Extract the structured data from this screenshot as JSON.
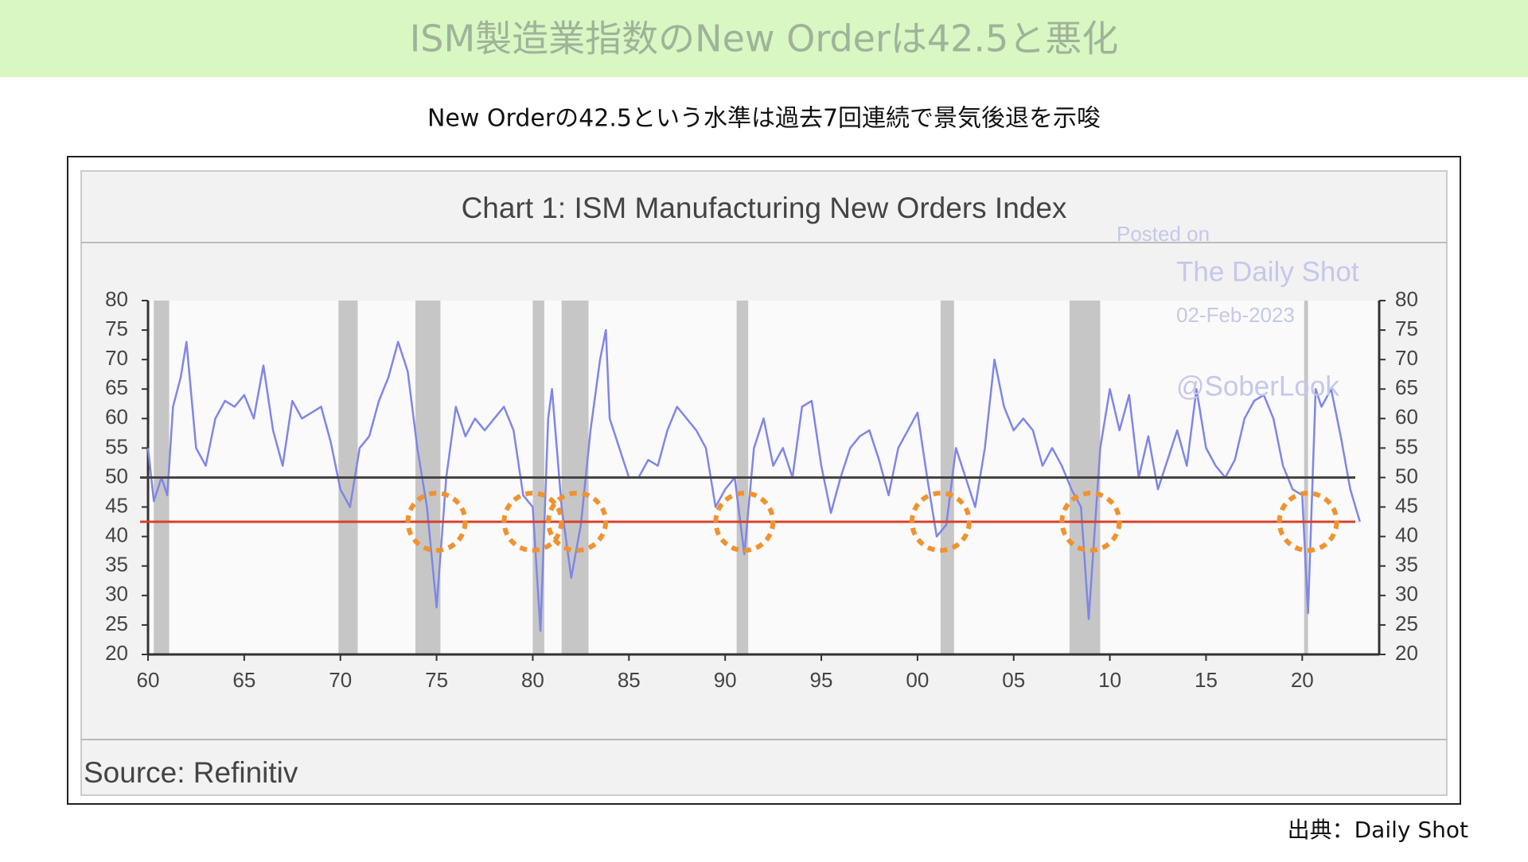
{
  "header": {
    "title": "ISM製造業指数のNew Orderは42.5と悪化",
    "subtitle": "New Orderの42.5という水準は過去7回連続で景気後退を示唆"
  },
  "footer": {
    "credit": "出典：Daily Shot"
  },
  "chart_data": {
    "type": "line",
    "title": "Chart 1: ISM Manufacturing New Orders Index",
    "source": "Source: Refinitiv",
    "watermark": [
      "Posted on",
      "The Daily Shot",
      "02-Feb-2023",
      "@SoberLook"
    ],
    "x": [
      1960.0,
      1960.3,
      1960.7,
      1961.0,
      1961.3,
      1961.7,
      1962.0,
      1962.5,
      1963.0,
      1963.5,
      1964.0,
      1964.5,
      1965.0,
      1965.5,
      1966.0,
      1966.5,
      1967.0,
      1967.5,
      1968.0,
      1968.5,
      1969.0,
      1969.5,
      1970.0,
      1970.5,
      1971.0,
      1971.5,
      1972.0,
      1972.5,
      1973.0,
      1973.5,
      1974.0,
      1974.5,
      1975.0,
      1975.5,
      1976.0,
      1976.5,
      1977.0,
      1977.5,
      1978.0,
      1978.5,
      1979.0,
      1979.5,
      1980.0,
      1980.4,
      1980.8,
      1981.0,
      1981.5,
      1982.0,
      1982.5,
      1983.0,
      1983.5,
      1983.8,
      1984.0,
      1984.5,
      1985.0,
      1985.5,
      1986.0,
      1986.5,
      1987.0,
      1987.5,
      1988.0,
      1988.5,
      1989.0,
      1989.5,
      1990.0,
      1990.5,
      1991.0,
      1991.5,
      1992.0,
      1992.5,
      1993.0,
      1993.5,
      1994.0,
      1994.5,
      1995.0,
      1995.5,
      1996.0,
      1996.5,
      1997.0,
      1997.5,
      1998.0,
      1998.5,
      1999.0,
      1999.5,
      2000.0,
      2000.5,
      2001.0,
      2001.5,
      2002.0,
      2002.5,
      2003.0,
      2003.5,
      2004.0,
      2004.5,
      2005.0,
      2005.5,
      2006.0,
      2006.5,
      2007.0,
      2007.5,
      2008.0,
      2008.5,
      2008.9,
      2009.5,
      2010.0,
      2010.5,
      2011.0,
      2011.5,
      2012.0,
      2012.5,
      2013.0,
      2013.5,
      2014.0,
      2014.5,
      2015.0,
      2015.5,
      2016.0,
      2016.5,
      2017.0,
      2017.5,
      2018.0,
      2018.5,
      2019.0,
      2019.5,
      2020.0,
      2020.3,
      2020.7,
      2021.0,
      2021.5,
      2022.0,
      2022.5,
      2023.0
    ],
    "series": [
      {
        "color": "#7f86e6",
        "values": [
          55,
          46,
          50,
          47,
          62,
          67,
          73,
          55,
          52,
          60,
          63,
          62,
          64,
          60,
          69,
          58,
          52,
          63,
          60,
          61,
          62,
          56,
          48,
          45,
          55,
          57,
          63,
          67,
          73,
          68,
          55,
          45,
          28,
          50,
          62,
          57,
          60,
          58,
          60,
          62,
          58,
          47,
          45,
          24,
          60,
          65,
          45,
          33,
          42,
          58,
          70,
          75,
          60,
          55,
          50,
          50,
          53,
          52,
          58,
          62,
          60,
          58,
          55,
          45,
          48,
          50,
          37,
          55,
          60,
          52,
          55,
          50,
          62,
          63,
          52,
          44,
          50,
          55,
          57,
          58,
          53,
          47,
          55,
          58,
          61,
          50,
          40,
          42,
          55,
          50,
          45,
          55,
          70,
          62,
          58,
          60,
          58,
          52,
          55,
          52,
          48,
          45,
          26,
          55,
          65,
          58,
          64,
          50,
          57,
          48,
          53,
          58,
          52,
          65,
          55,
          52,
          50,
          53,
          60,
          63,
          64,
          60,
          52,
          48,
          47,
          27,
          65,
          62,
          65,
          57,
          48,
          42.5
        ]
      }
    ],
    "xlim": [
      1960,
      2024
    ],
    "ylim": [
      20,
      80
    ],
    "y2lim": [
      20,
      80
    ],
    "xticks": [
      {
        "value": 1960,
        "label": "60"
      },
      {
        "value": 1965,
        "label": "65"
      },
      {
        "value": 1970,
        "label": "70"
      },
      {
        "value": 1975,
        "label": "75"
      },
      {
        "value": 1980,
        "label": "80"
      },
      {
        "value": 1985,
        "label": "85"
      },
      {
        "value": 1990,
        "label": "90"
      },
      {
        "value": 1995,
        "label": "95"
      },
      {
        "value": 2000,
        "label": "00"
      },
      {
        "value": 2005,
        "label": "05"
      },
      {
        "value": 2010,
        "label": "10"
      },
      {
        "value": 2015,
        "label": "15"
      },
      {
        "value": 2020,
        "label": "20"
      }
    ],
    "yticks": [
      20,
      25,
      30,
      35,
      40,
      45,
      50,
      55,
      60,
      65,
      70,
      75,
      80
    ],
    "y2ticks": [
      20,
      25,
      30,
      35,
      40,
      45,
      50,
      55,
      60,
      65,
      70,
      75,
      80
    ],
    "recessions": [
      [
        1960.3,
        1961.1
      ],
      [
        1969.9,
        1970.9
      ],
      [
        1973.9,
        1975.2
      ],
      [
        1980.0,
        1980.6
      ],
      [
        1981.5,
        1982.9
      ],
      [
        1990.6,
        1991.2
      ],
      [
        2001.2,
        2001.9
      ],
      [
        2007.9,
        2009.5
      ],
      [
        2020.1,
        2020.3
      ]
    ],
    "recession_color": "#c6c6c6",
    "reference_lines": [
      {
        "value": 50,
        "color": "#444444"
      },
      {
        "value": 42.5,
        "color": "#d9412b"
      }
    ],
    "circled_x": [
      1975,
      1980,
      1982.3,
      1991,
      2001.2,
      2009,
      2020.3
    ],
    "circle_color": "#f0922f"
  }
}
